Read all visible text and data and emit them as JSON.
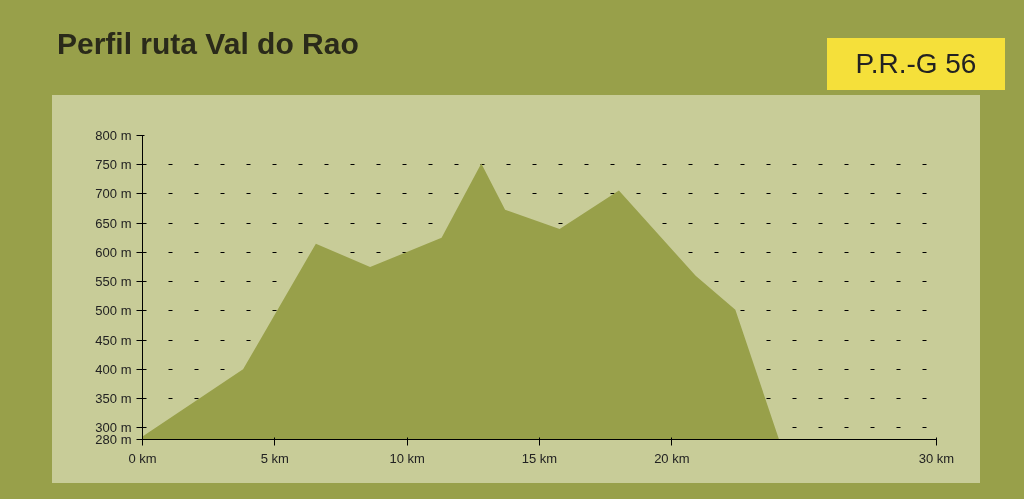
{
  "chart_data": {
    "type": "area",
    "title": "Perfil ruta Val do Rao",
    "annotations": [
      "P.R.-G 56"
    ],
    "x": [
      0,
      3.8,
      6.55,
      8.6,
      11.3,
      12.8,
      13.7,
      15.76,
      18.0,
      20.9,
      22.4,
      24.05
    ],
    "values": [
      285,
      400,
      615,
      575,
      625,
      752,
      673,
      640,
      706,
      560,
      502,
      280
    ],
    "color": "#98a04a",
    "xlim": [
      0,
      30
    ],
    "xticks": [
      {
        "value": 0,
        "label": "0 km"
      },
      {
        "value": 5,
        "label": "5 km"
      },
      {
        "value": 10,
        "label": "10 km"
      },
      {
        "value": 15,
        "label": "15 km"
      },
      {
        "value": 20,
        "label": "20 km"
      },
      {
        "value": 30,
        "label": "30 km"
      }
    ],
    "ylim": [
      280,
      800
    ],
    "yticks": [
      {
        "value": 280,
        "label": "280 m"
      },
      {
        "value": 300,
        "label": "300 m"
      },
      {
        "value": 350,
        "label": "350 m"
      },
      {
        "value": 400,
        "label": "400 m"
      },
      {
        "value": 450,
        "label": "450 m"
      },
      {
        "value": 500,
        "label": "500 m"
      },
      {
        "value": 550,
        "label": "550 m"
      },
      {
        "value": 600,
        "label": "600 m"
      },
      {
        "value": 650,
        "label": "650 m"
      },
      {
        "value": 700,
        "label": "700 m"
      },
      {
        "value": 750,
        "label": "750 m"
      },
      {
        "value": 800,
        "label": "800 m"
      }
    ],
    "grid": "y"
  }
}
